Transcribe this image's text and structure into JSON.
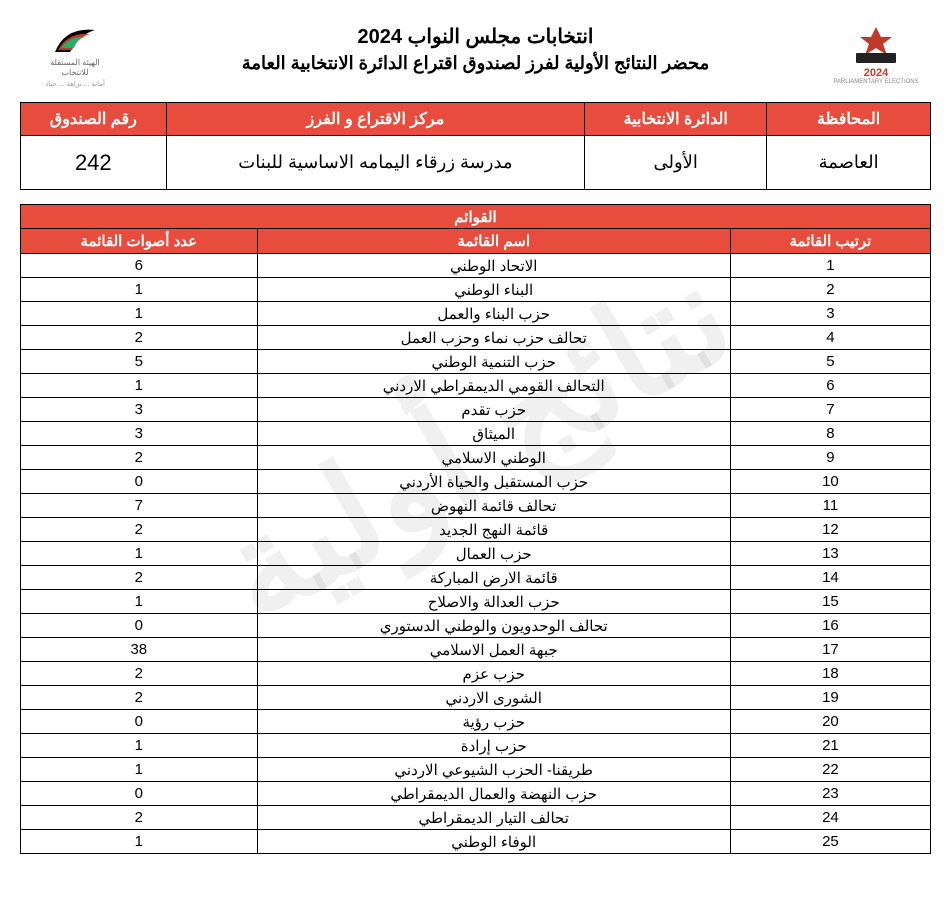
{
  "watermark_text": "نتائج أولية",
  "header": {
    "title1": "انتخابات مجلس النواب 2024",
    "title2": "محضر النتائج الأولية لفرز لصندوق اقتراع الدائرة الانتخابية العامة"
  },
  "logo_left": {
    "year": "2024",
    "caption": "PARLIAMENTARY ELECTIONS"
  },
  "logo_right": {
    "line1": "الهيئة المستقلة",
    "line2": "للانتخاب",
    "tagline": "أمانة ... نزاهة ... حياد"
  },
  "info_headers": {
    "governorate": "المحافظة",
    "district": "الدائرة الانتخابية",
    "center": "مركز الاقتراع و الفرز",
    "box": "رقم الصندوق"
  },
  "info_values": {
    "governorate": "العاصمة",
    "district": "الأولى",
    "center": "مدرسة زرقاء اليمامه الاساسية للبنات",
    "box": "242"
  },
  "lists_section_title": "القوائم",
  "lists_headers": {
    "rank": "ترتيب القائمة",
    "name": "اسم القائمة",
    "votes": "عدد أصوات القائمة"
  },
  "lists": [
    {
      "rank": "1",
      "name": "الاتحاد الوطني",
      "votes": "6"
    },
    {
      "rank": "2",
      "name": "البناء الوطني",
      "votes": "1"
    },
    {
      "rank": "3",
      "name": "حزب البناء والعمل",
      "votes": "1"
    },
    {
      "rank": "4",
      "name": "تحالف حزب نماء وحزب العمل",
      "votes": "2"
    },
    {
      "rank": "5",
      "name": "حزب التنمية الوطني",
      "votes": "5"
    },
    {
      "rank": "6",
      "name": "التحالف القومي الديمقراطي الاردني",
      "votes": "1"
    },
    {
      "rank": "7",
      "name": "حزب تقدم",
      "votes": "3"
    },
    {
      "rank": "8",
      "name": "الميثاق",
      "votes": "3"
    },
    {
      "rank": "9",
      "name": "الوطني الاسلامي",
      "votes": "2"
    },
    {
      "rank": "10",
      "name": "حزب المستقبل والحياة الأردني",
      "votes": "0"
    },
    {
      "rank": "11",
      "name": "تحالف قائمة النهوض",
      "votes": "7"
    },
    {
      "rank": "12",
      "name": "قائمة النهج الجديد",
      "votes": "2"
    },
    {
      "rank": "13",
      "name": "حزب العمال",
      "votes": "1"
    },
    {
      "rank": "14",
      "name": "قائمة الارض المباركة",
      "votes": "2"
    },
    {
      "rank": "15",
      "name": "حزب العدالة والاصلاح",
      "votes": "1"
    },
    {
      "rank": "16",
      "name": "تحالف الوحدويون والوطني الدستوري",
      "votes": "0"
    },
    {
      "rank": "17",
      "name": "جبهة العمل الاسلامي",
      "votes": "38"
    },
    {
      "rank": "18",
      "name": "حزب عزم",
      "votes": "2"
    },
    {
      "rank": "19",
      "name": "الشورى الاردني",
      "votes": "2"
    },
    {
      "rank": "20",
      "name": "حزب رؤية",
      "votes": "0"
    },
    {
      "rank": "21",
      "name": "حزب إرادة",
      "votes": "1"
    },
    {
      "rank": "22",
      "name": "طريقنا- الحزب الشيوعي الاردني",
      "votes": "1"
    },
    {
      "rank": "23",
      "name": "حزب النهضة والعمال الديمقراطي",
      "votes": "0"
    },
    {
      "rank": "24",
      "name": "تحالف التيار الديمقراطي",
      "votes": "2"
    },
    {
      "rank": "25",
      "name": "الوفاء الوطني",
      "votes": "1"
    }
  ],
  "colors": {
    "header_bg": "#e74c3c",
    "header_fg": "#ffffff",
    "border": "#000000",
    "watermark": "rgba(0,0,0,0.06)"
  }
}
